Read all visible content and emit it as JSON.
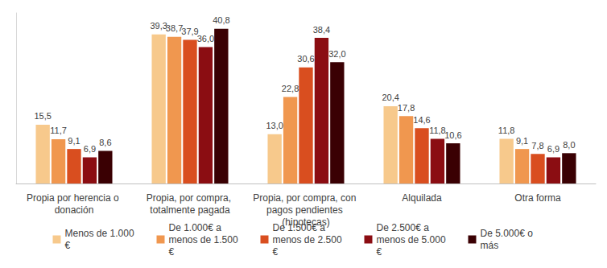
{
  "chart_data": {
    "type": "bar",
    "categories": [
      "Propia por herencia o donación",
      "Propia, por compra, totalmente pagada",
      "Propia, por compra, con pagos pendientes (hipotecas)",
      "Alquilada",
      "Otra forma"
    ],
    "series": [
      {
        "name": "Menos de 1.000€",
        "color": "#f7c98c",
        "values": [
          15.5,
          39.3,
          13.0,
          20.4,
          11.8
        ],
        "value_labels": [
          "15,5",
          "39,3",
          "13,0",
          "20,4",
          "11,8"
        ]
      },
      {
        "name": "De 1.000€ a menos de 1.500€",
        "color": "#f0974f",
        "values": [
          11.7,
          38.7,
          22.8,
          17.8,
          9.1
        ],
        "value_labels": [
          "11,7",
          "38,7",
          "22,8",
          "17,8",
          "9,1"
        ]
      },
      {
        "name": "De 1.500€ a menos de 2.500€",
        "color": "#d94e1f",
        "values": [
          9.1,
          37.9,
          30.6,
          14.6,
          7.8
        ],
        "value_labels": [
          "9,1",
          "37,9",
          "30,6",
          "14,6",
          "7,8"
        ]
      },
      {
        "name": "De 2.500€ a menos de 5.000€",
        "color": "#8b0d12",
        "values": [
          6.9,
          36.0,
          38.4,
          11.8,
          6.9
        ],
        "value_labels": [
          "6,9",
          "36,0",
          "38,4",
          "11,8",
          "6,9"
        ]
      },
      {
        "name": "De 5.000€ o más",
        "color": "#3a0003",
        "values": [
          8.6,
          40.8,
          32.0,
          10.6,
          8.0
        ],
        "value_labels": [
          "8,6",
          "40,8",
          "32,0",
          "10,6",
          "8,0"
        ]
      }
    ],
    "ylim": [
      0,
      45
    ],
    "data_labels": true,
    "tick_labels": "x",
    "grid": false,
    "legend": "bottom"
  }
}
